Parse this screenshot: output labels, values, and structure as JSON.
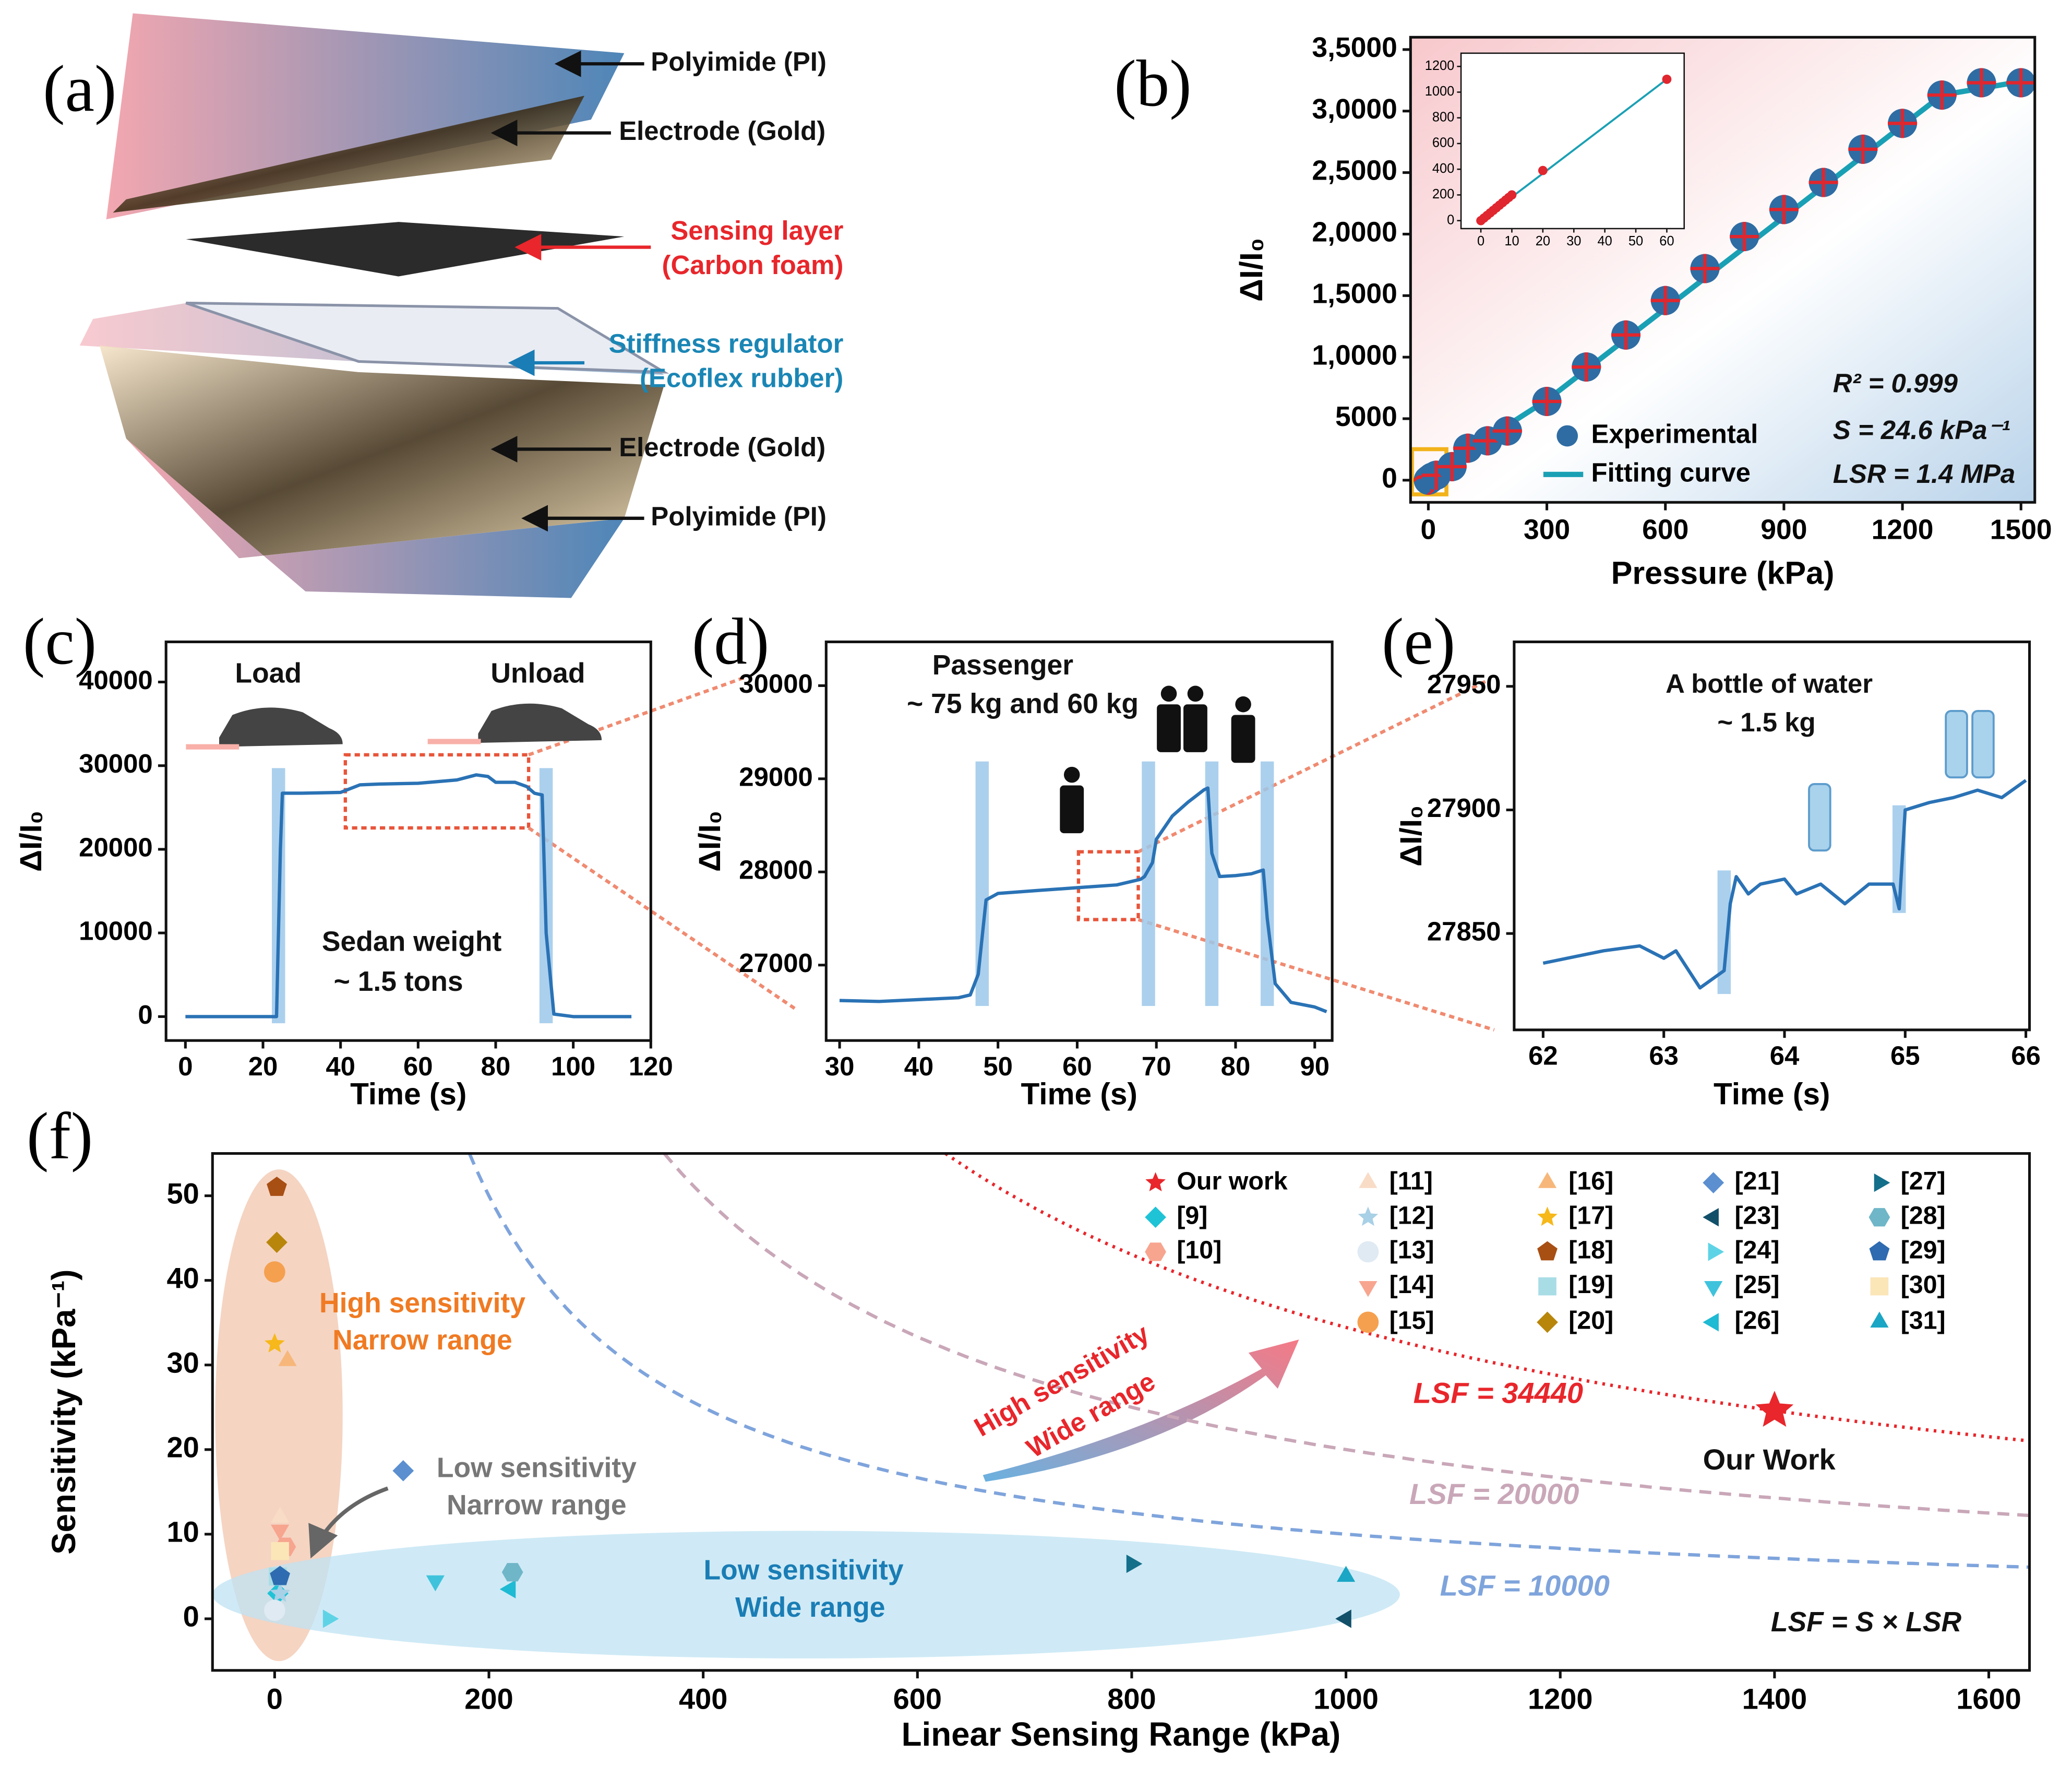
{
  "diagram": {
    "panel": "(a)",
    "labels": [
      "Polyimide (PI)",
      "Electrode (Gold)",
      "Sensing layer",
      "(Carbon foam)",
      "Stiffness regulator",
      "(Ecoflex rubber)",
      "Electrode (Gold)",
      "Polyimide (PI)"
    ]
  },
  "chart_data": [
    {
      "type": "scatter",
      "panel": "(b)",
      "xlabel": "Pressure (kPa)",
      "ylabel": "ΔI/I₀",
      "xlim": [
        -45,
        1535
      ],
      "ylim": [
        -1800,
        36000
      ],
      "xticks": [
        0,
        300,
        600,
        900,
        1200,
        1500
      ],
      "yticks": [
        0,
        5000,
        {
          "value": 10000,
          "label": "1,0000"
        },
        {
          "value": 15000,
          "label": "1,5000"
        },
        {
          "value": 20000,
          "label": "2,0000"
        },
        {
          "value": 25000,
          "label": "2,5000"
        },
        {
          "value": 30000,
          "label": "3,0000"
        },
        {
          "value": 35000,
          "label": "3,5000"
        }
      ],
      "series": [
        {
          "name": "Experimental",
          "type": "scatter",
          "marker": "circle",
          "color": "#2f6ca3",
          "x": [
            0,
            2,
            4,
            6,
            8,
            10,
            20,
            60,
            100,
            150,
            200,
            300,
            400,
            500,
            600,
            700,
            800,
            900,
            1000,
            1100,
            1200,
            1300,
            1400,
            1500
          ],
          "values": [
            0,
            50,
            100,
            150,
            200,
            250,
            400,
            1100,
            2600,
            3200,
            4000,
            6400,
            9200,
            11800,
            14600,
            17200,
            19800,
            22000,
            24200,
            26900,
            29000,
            31300,
            32300,
            32300
          ]
        },
        {
          "name": "Fitting curve",
          "type": "line",
          "color": "#1aa0b4",
          "x": [
            0,
            100,
            300,
            1300,
            1500
          ],
          "values": [
            0,
            2400,
            6500,
            31300,
            32400
          ]
        }
      ],
      "annotations": [
        "R² = 0.999",
        "S = 24.6 kPa⁻¹",
        "LSR = 1.4 MPa"
      ]
    },
    {
      "type": "scatter",
      "xlim": [
        -6.4,
        65.6
      ],
      "ylim": [
        -62,
        1303
      ],
      "xticks": [
        0,
        10,
        20,
        30,
        40,
        50,
        60
      ],
      "yticks": [
        0,
        200,
        400,
        600,
        800,
        1000,
        1200
      ],
      "series": [
        {
          "type": "line",
          "color": "#1aa0b4",
          "x": [
            0,
            60
          ],
          "values": [
            0,
            1100
          ]
        },
        {
          "type": "scatter",
          "marker": "circle",
          "color": "#e0262e",
          "x": [
            0,
            1,
            2,
            3,
            4,
            5,
            6,
            7,
            8,
            9,
            10,
            20,
            60
          ],
          "values": [
            0,
            20,
            40,
            60,
            80,
            100,
            120,
            140,
            160,
            180,
            200,
            390,
            1100
          ]
        }
      ]
    },
    {
      "type": "line",
      "panel": "(c)",
      "xlabel": "Time (s)",
      "ylabel": "ΔI/I₀",
      "xlim": [
        -5,
        120
      ],
      "ylim": [
        -2860,
        44800
      ],
      "xticks": [
        0,
        20,
        40,
        60,
        80,
        100,
        120
      ],
      "yticks": [
        0,
        10000,
        20000,
        30000,
        40000
      ],
      "highlights": [
        24,
        93
      ],
      "series": [
        {
          "type": "line",
          "color": "#2a72b5",
          "x": [
            0,
            23.5,
            24.5,
            25,
            30,
            40,
            45,
            50,
            60,
            70,
            75,
            78,
            80,
            85,
            88,
            90,
            92,
            93,
            95,
            100,
            115
          ],
          "values": [
            0,
            0,
            20000,
            26700,
            26700,
            26800,
            27700,
            27800,
            27900,
            28300,
            28900,
            28700,
            28000,
            28000,
            27500,
            26700,
            26500,
            10000,
            300,
            0,
            0
          ]
        }
      ],
      "annotations": [
        "Load",
        "Unload",
        "Sedan weight",
        "~ 1.5 tons"
      ]
    },
    {
      "type": "line",
      "panel": "(d)",
      "xlabel": "Time (s)",
      "ylabel": "ΔI/I₀",
      "xlim": [
        28.3,
        92.2
      ],
      "ylim": [
        26190,
        30470
      ],
      "xticks": [
        30,
        40,
        50,
        60,
        70,
        80,
        90
      ],
      "yticks": [
        27000,
        28000,
        29000,
        30000
      ],
      "highlights": [
        48,
        69,
        77,
        84
      ],
      "series": [
        {
          "type": "line",
          "color": "#2a72b5",
          "x": [
            30,
            35,
            40,
            45,
            46.5,
            47.5,
            48.5,
            50,
            55,
            60,
            65,
            67,
            68,
            68.5,
            69.5,
            70,
            72,
            74,
            76,
            76.5,
            77,
            78,
            80,
            82,
            83.5,
            84,
            85,
            87,
            90,
            91.5
          ],
          "values": [
            26620,
            26610,
            26630,
            26650,
            26680,
            26900,
            27700,
            27770,
            27800,
            27830,
            27860,
            27900,
            27920,
            27950,
            28100,
            28350,
            28600,
            28750,
            28880,
            28900,
            28200,
            27950,
            27960,
            27980,
            28020,
            27500,
            26800,
            26600,
            26550,
            26500
          ]
        }
      ],
      "annotations": [
        "Passenger",
        "~ 75 kg and 60 kg"
      ]
    },
    {
      "type": "line",
      "panel": "(e)",
      "xlabel": "Time (s)",
      "ylabel": "ΔI/I₀",
      "xlim": [
        61.76,
        66.03
      ],
      "ylim": [
        27811,
        27968
      ],
      "xticks": [
        62,
        63,
        64,
        65,
        66
      ],
      "yticks": [
        27850,
        27900,
        27950
      ],
      "highlights": [
        63.5,
        64.95
      ],
      "series": [
        {
          "type": "line",
          "color": "#2a72b5",
          "x": [
            62,
            62.5,
            62.8,
            63,
            63.1,
            63.3,
            63.5,
            63.55,
            63.6,
            63.7,
            63.8,
            64,
            64.1,
            64.3,
            64.5,
            64.7,
            64.9,
            64.95,
            65,
            65.2,
            65.4,
            65.6,
            65.8,
            66
          ],
          "values": [
            27838,
            27843,
            27845,
            27840,
            27843,
            27828,
            27835,
            27862,
            27873,
            27866,
            27870,
            27872,
            27866,
            27870,
            27862,
            27870,
            27870,
            27860,
            27900,
            27903,
            27905,
            27908,
            27905,
            27912
          ]
        }
      ],
      "annotations": [
        "A bottle of water",
        "~ 1.5 kg"
      ]
    },
    {
      "type": "scatter",
      "panel": "(f)",
      "xlabel": "Linear Sensing Range (kPa)",
      "ylabel": "Sensitivity (kPa⁻¹)",
      "xlim": [
        -58,
        1638
      ],
      "ylim": [
        -6.1,
        55
      ],
      "xticks": [
        0,
        200,
        400,
        600,
        800,
        1000,
        1200,
        1400,
        1600
      ],
      "yticks": [
        0,
        10,
        20,
        30,
        40,
        50
      ],
      "curves": [
        {
          "label": "LSF = 34440",
          "value": 34440,
          "color": "#e8262b",
          "style": "dotted"
        },
        {
          "label": "LSF = 20000",
          "value": 20000,
          "color": "#c9a7b8",
          "style": "dashed"
        },
        {
          "label": "LSF = 10000",
          "value": 10000,
          "color": "#7fa4dc",
          "style": "dashed"
        }
      ],
      "series": [
        {
          "name": "Our work",
          "type": "scatter",
          "marker": "star",
          "color": "#e8262b",
          "x": [
            1400
          ],
          "values": [
            24.6
          ]
        },
        {
          "name": "[9]",
          "type": "scatter",
          "marker": "diamond",
          "color": "#1fc3d6",
          "x": [
            3
          ],
          "values": [
            3
          ]
        },
        {
          "name": "[10]",
          "type": "scatter",
          "marker": "hexagon",
          "color": "#f7a58f",
          "x": [
            10
          ],
          "values": [
            8.5
          ]
        },
        {
          "name": "[11]",
          "type": "scatter",
          "marker": "triangle-up",
          "color": "#f9dcc6",
          "x": [
            5
          ],
          "values": [
            12
          ]
        },
        {
          "name": "[12]",
          "type": "scatter",
          "marker": "star",
          "color": "#a8d0e6",
          "x": [
            5
          ],
          "values": [
            3
          ]
        },
        {
          "name": "[13]",
          "type": "scatter",
          "marker": "circle",
          "color": "#dfeaf3",
          "x": [
            0
          ],
          "values": [
            1
          ]
        },
        {
          "name": "[14]",
          "type": "scatter",
          "marker": "triangle-down",
          "color": "#f7a58f",
          "x": [
            5
          ],
          "values": [
            10.5
          ]
        },
        {
          "name": "[15]",
          "type": "scatter",
          "marker": "circle",
          "color": "#f5a04f",
          "x": [
            0
          ],
          "values": [
            41
          ]
        },
        {
          "name": "[16]",
          "type": "scatter",
          "marker": "triangle-up",
          "color": "#f7b77a",
          "x": [
            12
          ],
          "values": [
            30.5
          ]
        },
        {
          "name": "[17]",
          "type": "scatter",
          "marker": "star",
          "color": "#f6b81a",
          "x": [
            0
          ],
          "values": [
            32.5
          ]
        },
        {
          "name": "[18]",
          "type": "scatter",
          "marker": "pentagon",
          "color": "#a84f14",
          "x": [
            2
          ],
          "values": [
            51
          ]
        },
        {
          "name": "[19]",
          "type": "scatter",
          "marker": "square",
          "color": "#a8dde6",
          "x": [
            3
          ],
          "values": [
            5
          ]
        },
        {
          "name": "[20]",
          "type": "scatter",
          "marker": "diamond",
          "color": "#b8860b",
          "x": [
            2
          ],
          "values": [
            44.5
          ]
        },
        {
          "name": "[21]",
          "type": "scatter",
          "marker": "diamond",
          "color": "#5b8fd0",
          "x": [
            120
          ],
          "values": [
            17.5
          ]
        },
        {
          "name": "[23]",
          "type": "scatter",
          "marker": "triangle-left",
          "color": "#12506a",
          "x": [
            1000
          ],
          "values": [
            0
          ]
        },
        {
          "name": "[24]",
          "type": "scatter",
          "marker": "triangle-right",
          "color": "#5fd3e6",
          "x": [
            50
          ],
          "values": [
            0
          ]
        },
        {
          "name": "[25]",
          "type": "scatter",
          "marker": "triangle-down",
          "color": "#3fc3dc",
          "x": [
            150
          ],
          "values": [
            4.5
          ]
        },
        {
          "name": "[26]",
          "type": "scatter",
          "marker": "triangle-left",
          "color": "#1fbad3",
          "x": [
            220
          ],
          "values": [
            3.5
          ]
        },
        {
          "name": "[27]",
          "type": "scatter",
          "marker": "triangle-right",
          "color": "#146f8a",
          "x": [
            800
          ],
          "values": [
            6.5
          ]
        },
        {
          "name": "[28]",
          "type": "scatter",
          "marker": "hexagon",
          "color": "#6fb6c8",
          "x": [
            222
          ],
          "values": [
            5.5
          ]
        },
        {
          "name": "[29]",
          "type": "scatter",
          "marker": "pentagon",
          "color": "#2e6bb0",
          "x": [
            5
          ],
          "values": [
            5
          ]
        },
        {
          "name": "[30]",
          "type": "scatter",
          "marker": "square",
          "color": "#fbe6b8",
          "x": [
            5
          ],
          "values": [
            8
          ]
        },
        {
          "name": "[31]",
          "type": "scatter",
          "marker": "triangle-up",
          "color": "#1aa6c4",
          "x": [
            1000
          ],
          "values": [
            5
          ]
        }
      ],
      "annotations": [
        "High sensitivity",
        "Narrow range",
        "Low sensitivity",
        "Narrow range",
        "Low sensitivity",
        "Wide range",
        "High sensitivity",
        "Wide range",
        "Our Work",
        "LSF = S × LSR"
      ]
    }
  ]
}
